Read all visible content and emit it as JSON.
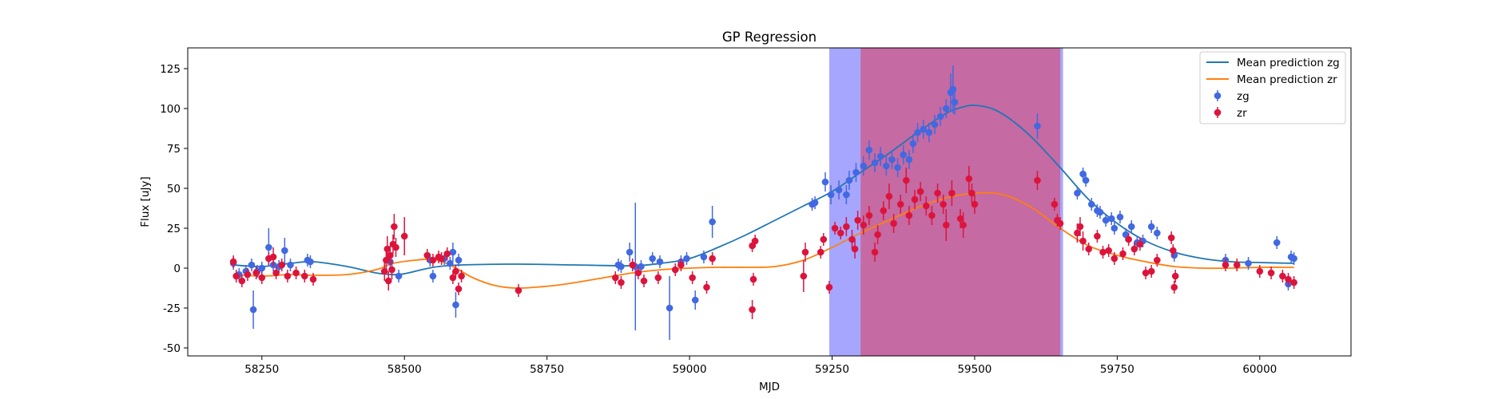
{
  "chart_data": {
    "type": "line",
    "title": "GP Regression",
    "xlabel": "MJD",
    "ylabel": "Flux [uJy]",
    "xlim": [
      58120,
      60160
    ],
    "ylim": [
      -55,
      138
    ],
    "xticks": [
      58250,
      58500,
      58750,
      59000,
      59250,
      59500,
      59750,
      60000
    ],
    "yticks": [
      -50,
      -25,
      0,
      25,
      50,
      75,
      100,
      125
    ],
    "grid": false,
    "legend_position": "top-right",
    "colors": {
      "zg_line": "#1f77b4",
      "zr_line": "#ff7f0e",
      "zg_points": "#4169e1",
      "zr_points": "#dc143c",
      "span_outer": "#6666ff",
      "span_inner": "#c0629c"
    },
    "spans": [
      {
        "x0": 59245,
        "x1": 59655,
        "color": "#a6a6ff"
      },
      {
        "x0": 59300,
        "x1": 59650,
        "color": "#c56aa3"
      }
    ],
    "lines": [
      {
        "name": "Mean prediction zg",
        "color": "#1f77b4",
        "x": [
          58200,
          58250,
          58300,
          58340,
          58400,
          58450,
          58490,
          58530,
          58560,
          58600,
          58700,
          58800,
          58900,
          58950,
          59000,
          59050,
          59100,
          59150,
          59200,
          59250,
          59300,
          59350,
          59400,
          59450,
          59480,
          59500,
          59530,
          59560,
          59600,
          59650,
          59700,
          59750,
          59800,
          59850,
          59900,
          59950,
          60000,
          60060
        ],
        "y": [
          2,
          1,
          3,
          4,
          1,
          -3,
          -4,
          -1,
          1,
          2,
          2.5,
          2,
          1.5,
          3,
          6,
          13,
          21,
          30,
          39,
          48,
          60,
          72,
          85,
          97,
          101,
          102,
          100,
          94,
          82,
          63,
          43,
          28,
          17,
          10,
          6,
          4,
          3.5,
          3
        ]
      },
      {
        "name": "Mean prediction zr",
        "color": "#ff7f0e",
        "x": [
          58200,
          58250,
          58300,
          58340,
          58400,
          58450,
          58480,
          58520,
          58550,
          58580,
          58620,
          58660,
          58700,
          58760,
          58800,
          58850,
          58900,
          58950,
          59000,
          59050,
          59100,
          59150,
          59200,
          59250,
          59300,
          59350,
          59400,
          59450,
          59500,
          59550,
          59600,
          59650,
          59700,
          59750,
          59800,
          59850,
          59900,
          59950,
          60000,
          60060
        ],
        "y": [
          -4,
          -5,
          -4,
          -4.5,
          -4,
          -1,
          3,
          5,
          5.5,
          2,
          -6,
          -11,
          -12.5,
          -11,
          -9,
          -6,
          -3,
          -1,
          0,
          0.5,
          0.5,
          1,
          5,
          13,
          22,
          30,
          38,
          44,
          47,
          46,
          38,
          25,
          14,
          8,
          4,
          1,
          0,
          0,
          0.5,
          0.5
        ]
      }
    ],
    "series": [
      {
        "name": "zg",
        "color": "#4169e1",
        "points": [
          [
            58200,
            3,
            4
          ],
          [
            58210,
            -4,
            4
          ],
          [
            58222,
            -2,
            4
          ],
          [
            58232,
            2,
            4
          ],
          [
            58235,
            -26,
            12
          ],
          [
            58242,
            -2,
            4
          ],
          [
            58250,
            0,
            4
          ],
          [
            58262,
            13,
            12
          ],
          [
            58270,
            2,
            4
          ],
          [
            58280,
            1,
            4
          ],
          [
            58290,
            11,
            8
          ],
          [
            58300,
            2,
            4
          ],
          [
            58330,
            5,
            4
          ],
          [
            58335,
            4,
            4
          ],
          [
            58475,
            4,
            4
          ],
          [
            58490,
            -5,
            4
          ],
          [
            58545,
            5,
            4
          ],
          [
            58550,
            -5,
            4
          ],
          [
            58570,
            6,
            4
          ],
          [
            58580,
            3,
            4
          ],
          [
            58585,
            10,
            6
          ],
          [
            58590,
            -23,
            8
          ],
          [
            58595,
            5,
            4
          ],
          [
            58875,
            2,
            4
          ],
          [
            58880,
            1,
            4
          ],
          [
            58895,
            10,
            6
          ],
          [
            58905,
            1,
            40
          ],
          [
            58915,
            1,
            4
          ],
          [
            58935,
            6,
            4
          ],
          [
            58948,
            4,
            4
          ],
          [
            58965,
            -25,
            20
          ],
          [
            58985,
            4,
            4
          ],
          [
            58995,
            6,
            4
          ],
          [
            59010,
            -20,
            6
          ],
          [
            59025,
            7,
            4
          ],
          [
            59040,
            29,
            10
          ],
          [
            59215,
            40,
            4
          ],
          [
            59220,
            41,
            4
          ],
          [
            59238,
            54,
            6
          ],
          [
            59248,
            46,
            6
          ],
          [
            59262,
            49,
            6
          ],
          [
            59275,
            46,
            6
          ],
          [
            59280,
            55,
            6
          ],
          [
            59292,
            60,
            6
          ],
          [
            59305,
            64,
            6
          ],
          [
            59315,
            74,
            6
          ],
          [
            59325,
            66,
            6
          ],
          [
            59335,
            70,
            6
          ],
          [
            59345,
            64,
            6
          ],
          [
            59355,
            68,
            6
          ],
          [
            59365,
            63,
            6
          ],
          [
            59375,
            71,
            6
          ],
          [
            59385,
            68,
            6
          ],
          [
            59392,
            78,
            6
          ],
          [
            59400,
            85,
            6
          ],
          [
            59410,
            87,
            6
          ],
          [
            59420,
            85,
            6
          ],
          [
            59430,
            90,
            6
          ],
          [
            59440,
            95,
            6
          ],
          [
            59450,
            100,
            6
          ],
          [
            59458,
            110,
            12
          ],
          [
            59462,
            112,
            15
          ],
          [
            59465,
            104,
            8
          ],
          [
            59610,
            89,
            8
          ],
          [
            59680,
            47,
            4
          ],
          [
            59690,
            59,
            4
          ],
          [
            59695,
            55,
            4
          ],
          [
            59705,
            40,
            4
          ],
          [
            59715,
            36,
            4
          ],
          [
            59720,
            35,
            4
          ],
          [
            59730,
            30,
            4
          ],
          [
            59740,
            31,
            4
          ],
          [
            59745,
            25,
            4
          ],
          [
            59755,
            32,
            4
          ],
          [
            59765,
            21,
            4
          ],
          [
            59775,
            26,
            4
          ],
          [
            59785,
            16,
            4
          ],
          [
            59795,
            17,
            4
          ],
          [
            59810,
            26,
            4
          ],
          [
            59820,
            22,
            4
          ],
          [
            59850,
            8,
            4
          ],
          [
            59940,
            5,
            4
          ],
          [
            59980,
            3,
            4
          ],
          [
            60030,
            16,
            4
          ],
          [
            60050,
            -10,
            4
          ],
          [
            60055,
            7,
            4
          ],
          [
            60060,
            6,
            4
          ]
        ]
      },
      {
        "name": "zr",
        "color": "#dc143c",
        "points": [
          [
            58200,
            4,
            4
          ],
          [
            58205,
            -5,
            4
          ],
          [
            58215,
            -8,
            4
          ],
          [
            58225,
            -4,
            4
          ],
          [
            58240,
            -3,
            4
          ],
          [
            58250,
            -6,
            4
          ],
          [
            58262,
            6,
            4
          ],
          [
            58270,
            7,
            6
          ],
          [
            58275,
            -3,
            4
          ],
          [
            58285,
            2,
            4
          ],
          [
            58295,
            -5,
            4
          ],
          [
            58310,
            -3,
            4
          ],
          [
            58325,
            -5,
            4
          ],
          [
            58340,
            -7,
            4
          ],
          [
            58465,
            -2,
            6
          ],
          [
            58468,
            5,
            6
          ],
          [
            58470,
            12,
            8
          ],
          [
            58472,
            -8,
            6
          ],
          [
            58475,
            8,
            6
          ],
          [
            58478,
            -1,
            6
          ],
          [
            58480,
            15,
            6
          ],
          [
            58482,
            26,
            8
          ],
          [
            58485,
            13,
            6
          ],
          [
            58500,
            20,
            12
          ],
          [
            58540,
            8,
            4
          ],
          [
            58550,
            5,
            4
          ],
          [
            58560,
            7,
            4
          ],
          [
            58565,
            6,
            4
          ],
          [
            58575,
            9,
            4
          ],
          [
            58585,
            -6,
            4
          ],
          [
            58590,
            -2,
            4
          ],
          [
            58595,
            -13,
            4
          ],
          [
            58600,
            -5,
            4
          ],
          [
            58700,
            -14,
            4
          ],
          [
            58870,
            -6,
            4
          ],
          [
            58880,
            -9,
            4
          ],
          [
            58900,
            2,
            4
          ],
          [
            58910,
            -3,
            4
          ],
          [
            58920,
            -8,
            4
          ],
          [
            58945,
            -6,
            4
          ],
          [
            58975,
            -1,
            4
          ],
          [
            58985,
            2,
            4
          ],
          [
            59005,
            -6,
            4
          ],
          [
            59030,
            -12,
            4
          ],
          [
            59040,
            6,
            4
          ],
          [
            59110,
            14,
            4
          ],
          [
            59115,
            17,
            4
          ],
          [
            59112,
            -7,
            4
          ],
          [
            59110,
            -26,
            6
          ],
          [
            59200,
            -5,
            10
          ],
          [
            59203,
            10,
            6
          ],
          [
            59230,
            10,
            4
          ],
          [
            59235,
            18,
            4
          ],
          [
            59245,
            -12,
            4
          ],
          [
            59255,
            25,
            4
          ],
          [
            59265,
            22,
            4
          ],
          [
            59275,
            26,
            6
          ],
          [
            59285,
            18,
            6
          ],
          [
            59290,
            12,
            6
          ],
          [
            59295,
            30,
            6
          ],
          [
            59305,
            27,
            6
          ],
          [
            59315,
            33,
            6
          ],
          [
            59325,
            10,
            6
          ],
          [
            59330,
            21,
            6
          ],
          [
            59340,
            36,
            6
          ],
          [
            59350,
            45,
            8
          ],
          [
            59358,
            28,
            6
          ],
          [
            59370,
            40,
            6
          ],
          [
            59380,
            55,
            8
          ],
          [
            59385,
            33,
            6
          ],
          [
            59395,
            43,
            6
          ],
          [
            59405,
            48,
            6
          ],
          [
            59415,
            39,
            6
          ],
          [
            59425,
            33,
            6
          ],
          [
            59435,
            47,
            6
          ],
          [
            59445,
            40,
            6
          ],
          [
            59450,
            27,
            10
          ],
          [
            59460,
            47,
            8
          ],
          [
            59475,
            31,
            6
          ],
          [
            59480,
            27,
            8
          ],
          [
            59490,
            56,
            8
          ],
          [
            59495,
            47,
            6
          ],
          [
            59500,
            40,
            6
          ],
          [
            59610,
            55,
            6
          ],
          [
            59640,
            40,
            4
          ],
          [
            59645,
            30,
            4
          ],
          [
            59650,
            28,
            4
          ],
          [
            59680,
            22,
            6
          ],
          [
            59685,
            26,
            6
          ],
          [
            59690,
            17,
            6
          ],
          [
            59700,
            12,
            4
          ],
          [
            59715,
            20,
            4
          ],
          [
            59725,
            10,
            4
          ],
          [
            59735,
            11,
            4
          ],
          [
            59745,
            6,
            4
          ],
          [
            59760,
            9,
            4
          ],
          [
            59770,
            18,
            4
          ],
          [
            59780,
            12,
            4
          ],
          [
            59790,
            15,
            4
          ],
          [
            59800,
            -3,
            4
          ],
          [
            59810,
            -2,
            4
          ],
          [
            59820,
            5,
            4
          ],
          [
            59845,
            19,
            4
          ],
          [
            59848,
            11,
            4
          ],
          [
            59850,
            -12,
            4
          ],
          [
            59852,
            -5,
            4
          ],
          [
            59940,
            2,
            4
          ],
          [
            59960,
            2,
            4
          ],
          [
            60000,
            -2,
            4
          ],
          [
            60020,
            -3,
            4
          ],
          [
            60040,
            -5,
            4
          ],
          [
            60050,
            -7,
            4
          ],
          [
            60060,
            -9,
            4
          ]
        ]
      }
    ]
  }
}
